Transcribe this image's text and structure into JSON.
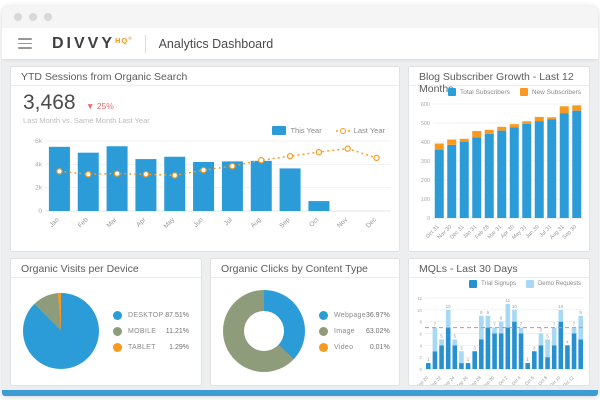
{
  "header": {
    "logo_main": "DIVVY",
    "logo_sup": "HQ",
    "logo_reg": "®",
    "page_title": "Analytics Dashboard"
  },
  "colors": {
    "primary_blue": "#2B9CD8",
    "light_blue": "#A8D9F4",
    "dark_blue": "#2791D0",
    "orange": "#F79A1F",
    "olive": "#8E9C7C",
    "kpi_delta_red": "#EE6A6A",
    "refline_red": "#E98585",
    "footer_blue": "#3D9BD5"
  },
  "panels": {
    "sessions": {
      "title": "YTD Sessions from Organic Search",
      "kpi_value": "3,468",
      "delta_arrow": "▼",
      "delta_value": "25%",
      "subtitle": "Last Month vs. Same Month Last Year"
    },
    "subscribers": {
      "title": "Blog Subscriber Growth - Last 12 Months"
    },
    "devices": {
      "title": "Organic Visits per Device"
    },
    "content_type": {
      "title": "Organic Clicks by Content Type"
    },
    "mqls": {
      "title": "MQLs - Last 30 Days"
    }
  },
  "chart_data": [
    {
      "id": "ytd_sessions",
      "type": "bar",
      "title": "YTD Sessions from Organic Search",
      "categories": [
        "Jan",
        "Feb",
        "Mar",
        "Apr",
        "May",
        "Jun",
        "Jul",
        "Aug",
        "Sep",
        "Oct",
        "Nov",
        "Dec"
      ],
      "ylim": [
        0,
        6000
      ],
      "yticks": [
        {
          "v": 0,
          "label": "0"
        },
        {
          "v": 2000,
          "label": "2k"
        },
        {
          "v": 4000,
          "label": "4k"
        },
        {
          "v": 6000,
          "label": "6k"
        }
      ],
      "grid": true,
      "legend_position": "top-right",
      "series": [
        {
          "name": "This Year",
          "kind": "bar",
          "color": "#2B9CD8",
          "values": [
            5500,
            5000,
            5550,
            4450,
            4650,
            4200,
            4250,
            4300,
            3650,
            850,
            0,
            0
          ]
        },
        {
          "name": "Last Year",
          "kind": "line",
          "color": "#F79A1F",
          "values": [
            3400,
            3150,
            3200,
            3150,
            3050,
            3500,
            3850,
            4350,
            4700,
            5050,
            5350,
            4550
          ]
        }
      ]
    },
    {
      "id": "subscriber_growth",
      "type": "bar",
      "stacked": true,
      "title": "Blog Subscriber Growth - Last 12 Months",
      "categories": [
        "Oct 31",
        "Nov 30",
        "Dec 31",
        "Jan 31",
        "Feb 28",
        "Mar 31",
        "Apr 30",
        "May 31",
        "Jun 30",
        "Jul 31",
        "Aug 31",
        "Sep 30"
      ],
      "ylim": [
        0,
        600
      ],
      "yticks": [
        {
          "v": 0,
          "label": "0"
        },
        {
          "v": 100,
          "label": "100"
        },
        {
          "v": 200,
          "label": "200"
        },
        {
          "v": 300,
          "label": "300"
        },
        {
          "v": 400,
          "label": "400"
        },
        {
          "v": 500,
          "label": "500"
        },
        {
          "v": 600,
          "label": "600"
        }
      ],
      "grid": true,
      "legend_position": "top-right",
      "series": [
        {
          "name": "Total Subscribers",
          "kind": "bar",
          "color": "#2B9CD8",
          "values": [
            360,
            385,
            402,
            425,
            443,
            460,
            478,
            495,
            510,
            520,
            550,
            565
          ]
        },
        {
          "name": "New Subscribers",
          "kind": "bar",
          "color": "#F79A1F",
          "values": [
            32,
            28,
            15,
            33,
            21,
            20,
            16,
            14,
            22,
            10,
            38,
            28
          ]
        }
      ]
    },
    {
      "id": "visits_by_device",
      "type": "pie",
      "title": "Organic Visits per Device",
      "labels": [
        "DESKTOP",
        "MOBILE",
        "TABLET"
      ],
      "values": [
        87.51,
        11.21,
        1.29
      ],
      "value_labels": [
        "87.51%",
        "11.21%",
        "1.29%"
      ],
      "colors": [
        "#2B9CD8",
        "#8E9C7C",
        "#F79A1F"
      ],
      "legend_position": "right"
    },
    {
      "id": "clicks_by_content_type",
      "type": "pie",
      "donut": true,
      "title": "Organic Clicks by Content Type",
      "labels": [
        "Webpage",
        "Image",
        "Video"
      ],
      "values": [
        36.97,
        63.02,
        0.01
      ],
      "value_labels": [
        "36.97%",
        "63.02%",
        "0.01%"
      ],
      "colors": [
        "#2B9CD8",
        "#8E9C7C",
        "#F79A1F"
      ],
      "legend_position": "right"
    },
    {
      "id": "mqls_last_30_days",
      "type": "bar",
      "stacked": true,
      "title": "MQLs - Last 30 Days",
      "categories": [
        "Sep 20",
        "Sep 21",
        "Sep 22",
        "Sep 23",
        "Sep 24",
        "Sep 25",
        "Sep 26",
        "Sep 27",
        "Sep 28",
        "Sep 29",
        "Sep 30",
        "Oct 1",
        "Oct 2",
        "Oct 3",
        "Oct 4",
        "Oct 5",
        "Oct 6",
        "Oct 7",
        "Oct 8",
        "Oct 9",
        "Oct 10",
        "Oct 11",
        "Oct 12",
        "Oct 13"
      ],
      "ylim": [
        0,
        12
      ],
      "yticks": [
        {
          "v": 0,
          "label": "0"
        },
        {
          "v": 2,
          "label": "2"
        },
        {
          "v": 4,
          "label": "4"
        },
        {
          "v": 6,
          "label": "6"
        },
        {
          "v": 8,
          "label": "8"
        },
        {
          "v": 10,
          "label": "10"
        },
        {
          "v": 12,
          "label": "12"
        }
      ],
      "grid": true,
      "refline": 7,
      "value_labels": true,
      "legend_position": "top-right",
      "series": [
        {
          "name": "Trial Signups",
          "kind": "bar",
          "color": "#2791D0",
          "values": [
            1,
            3,
            4,
            7,
            4,
            1,
            1,
            3,
            5,
            7,
            6,
            6,
            7,
            8,
            6,
            1,
            3,
            4,
            2,
            4,
            8,
            4,
            6,
            5
          ]
        },
        {
          "name": "Demo Requests",
          "kind": "bar",
          "color": "#A8D9F4",
          "values": [
            0,
            4,
            1,
            3,
            1,
            2,
            0,
            0,
            4,
            2,
            1,
            2,
            4,
            2,
            1,
            0,
            0,
            2,
            3,
            3,
            2,
            0,
            1,
            4
          ]
        }
      ]
    }
  ]
}
